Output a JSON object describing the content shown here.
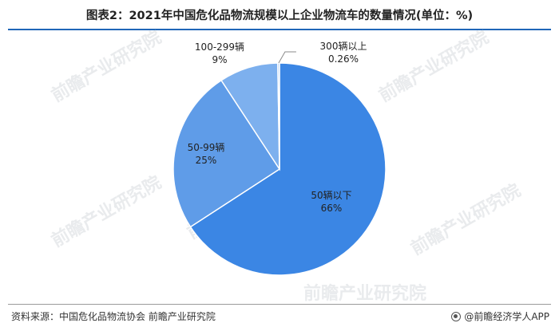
{
  "title": "图表2：2021年中国危化品物流规模以上企业物流车的数量情况(单位：%)",
  "source": "资料来源：中国危化品物流协会 前瞻产业研究院",
  "brand": "@前瞻经济学人APP",
  "watermark": "前瞻产业研究院",
  "colors": {
    "title_rule": "#1f66b8",
    "slice_main": "#3b86e4",
    "slice_second": "#5f9ce8",
    "slice_third": "#7db0ee",
    "slice_fourth": "#8fbcf2"
  },
  "chart_data": {
    "type": "pie",
    "slices": [
      {
        "label": "50辆以下",
        "value": 66,
        "display": "66%"
      },
      {
        "label": "50-99辆",
        "value": 25,
        "display": "25%"
      },
      {
        "label": "100-299辆",
        "value": 9,
        "display": "9%"
      },
      {
        "label": "300辆以上",
        "value": 0.26,
        "display": "0.26%"
      }
    ]
  }
}
